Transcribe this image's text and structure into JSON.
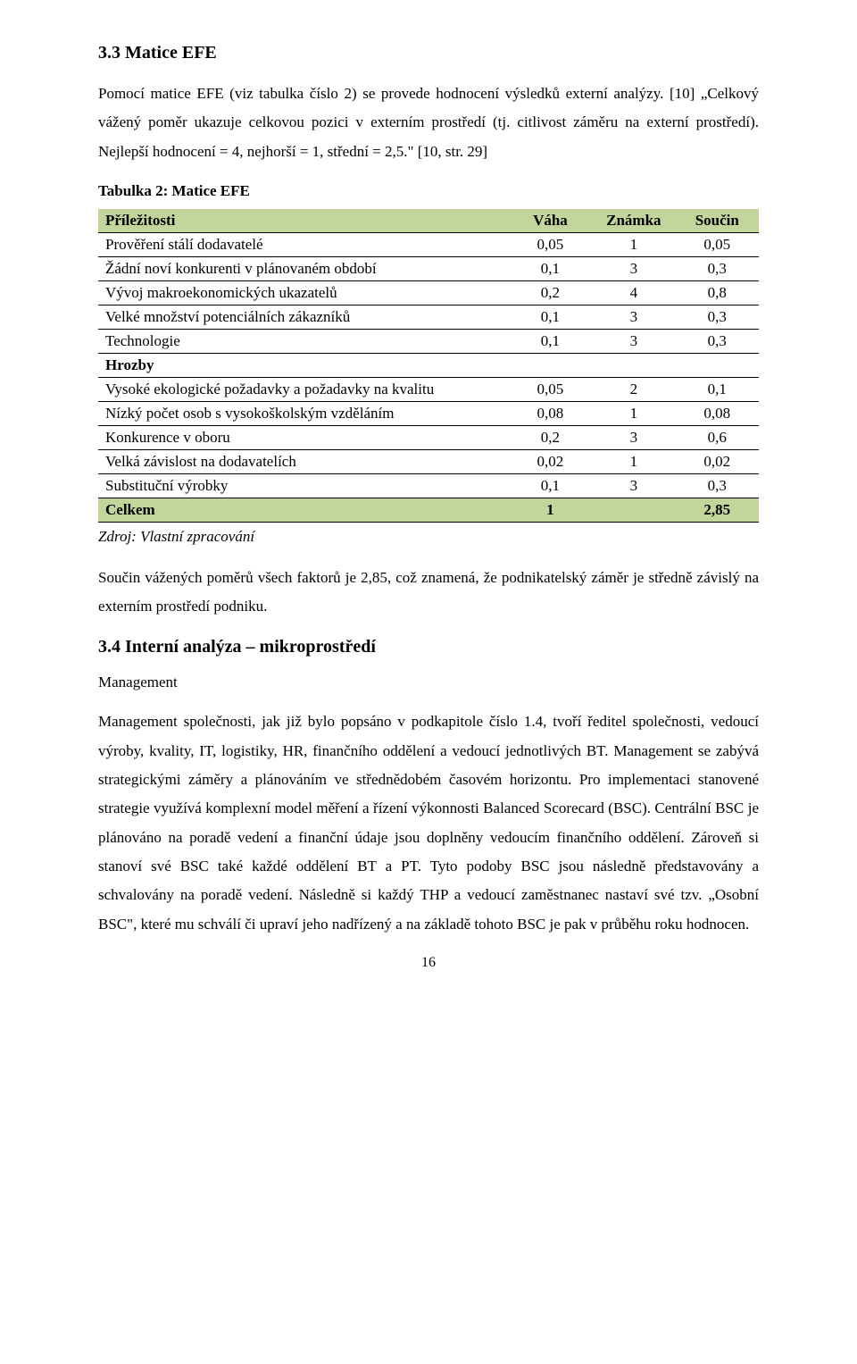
{
  "section1": {
    "heading": "3.3 Matice EFE",
    "p1": "Pomocí matice EFE (viz tabulka číslo 2) se provede hodnocení výsledků externí analýzy. [10] „Celkový vážený poměr ukazuje celkovou pozici v externím prostředí (tj. citlivost záměru na externí prostředí). Nejlepší hodnocení = 4, nejhorší = 1, střední = 2,5.\" [10, str. 29]",
    "tableCaption": "Tabulka 2: Matice EFE"
  },
  "table": {
    "headers": {
      "c1": "Příležitosti",
      "c2": "Váha",
      "c3": "Známka",
      "c4": "Součin"
    },
    "rows": [
      {
        "label": "Prověření stálí dodavatelé",
        "v": [
          "0,05",
          "1",
          "0,05"
        ],
        "bold": false,
        "shaded": false
      },
      {
        "label": "Žádní noví konkurenti v plánovaném období",
        "v": [
          "0,1",
          "3",
          "0,3"
        ],
        "bold": false,
        "shaded": false
      },
      {
        "label": "Vývoj makroekonomických ukazatelů",
        "v": [
          "0,2",
          "4",
          "0,8"
        ],
        "bold": false,
        "shaded": false
      },
      {
        "label": "Velké množství potenciálních zákazníků",
        "v": [
          "0,1",
          "3",
          "0,3"
        ],
        "bold": false,
        "shaded": false
      },
      {
        "label": "Technologie",
        "v": [
          "0,1",
          "3",
          "0,3"
        ],
        "bold": false,
        "shaded": false
      },
      {
        "label": "Hrozby",
        "v": [
          "",
          "",
          ""
        ],
        "bold": true,
        "shaded": false
      },
      {
        "label": "Vysoké ekologické požadavky a požadavky na kvalitu",
        "v": [
          "0,05",
          "2",
          "0,1"
        ],
        "bold": false,
        "shaded": false
      },
      {
        "label": "Nízký počet osob s vysokoškolským vzděláním",
        "v": [
          "0,08",
          "1",
          "0,08"
        ],
        "bold": false,
        "shaded": false
      },
      {
        "label": "Konkurence v oboru",
        "v": [
          "0,2",
          "3",
          "0,6"
        ],
        "bold": false,
        "shaded": false
      },
      {
        "label": "Velká závislost na dodavatelích",
        "v": [
          "0,02",
          "1",
          "0,02"
        ],
        "bold": false,
        "shaded": false
      },
      {
        "label": "Substituční výrobky",
        "v": [
          "0,1",
          "3",
          "0,3"
        ],
        "bold": false,
        "shaded": false
      }
    ],
    "totals": {
      "label": "Celkem",
      "v": [
        "1",
        "",
        "2,85"
      ]
    },
    "colors": {
      "shaded_bg": "#c2d69b",
      "border": "#000000"
    }
  },
  "source": "Zdroj: Vlastní zpracování",
  "p2": "Součin vážených poměrů všech faktorů je 2,85, což znamená, že podnikatelský záměr je středně závislý na externím prostředí podniku.",
  "section2": {
    "heading": "3.4 Interní analýza – mikroprostředí",
    "sub": "Management",
    "p1": "Management společnosti, jak již bylo popsáno v podkapitole číslo 1.4, tvoří ředitel společnosti, vedoucí výroby, kvality, IT, logistiky, HR, finančního oddělení a vedoucí jednotlivých BT. Management se zabývá strategickými záměry a plánováním ve střednědobém časovém horizontu. Pro implementaci stanovené strategie využívá komplexní model měření a řízení výkonnosti Balanced Scorecard (BSC). Centrální BSC je plánováno na poradě vedení a finanční údaje jsou doplněny vedoucím finančního oddělení. Zároveň si stanoví své BSC také každé oddělení BT a PT. Tyto podoby BSC jsou následně představovány a schvalovány na poradě vedení. Následně si každý THP a vedoucí zaměstnanec nastaví své tzv. „Osobní BSC\", které mu schválí či upraví jeho nadřízený a na základě tohoto BSC je pak v průběhu roku hodnocen."
  },
  "pageNumber": "16"
}
